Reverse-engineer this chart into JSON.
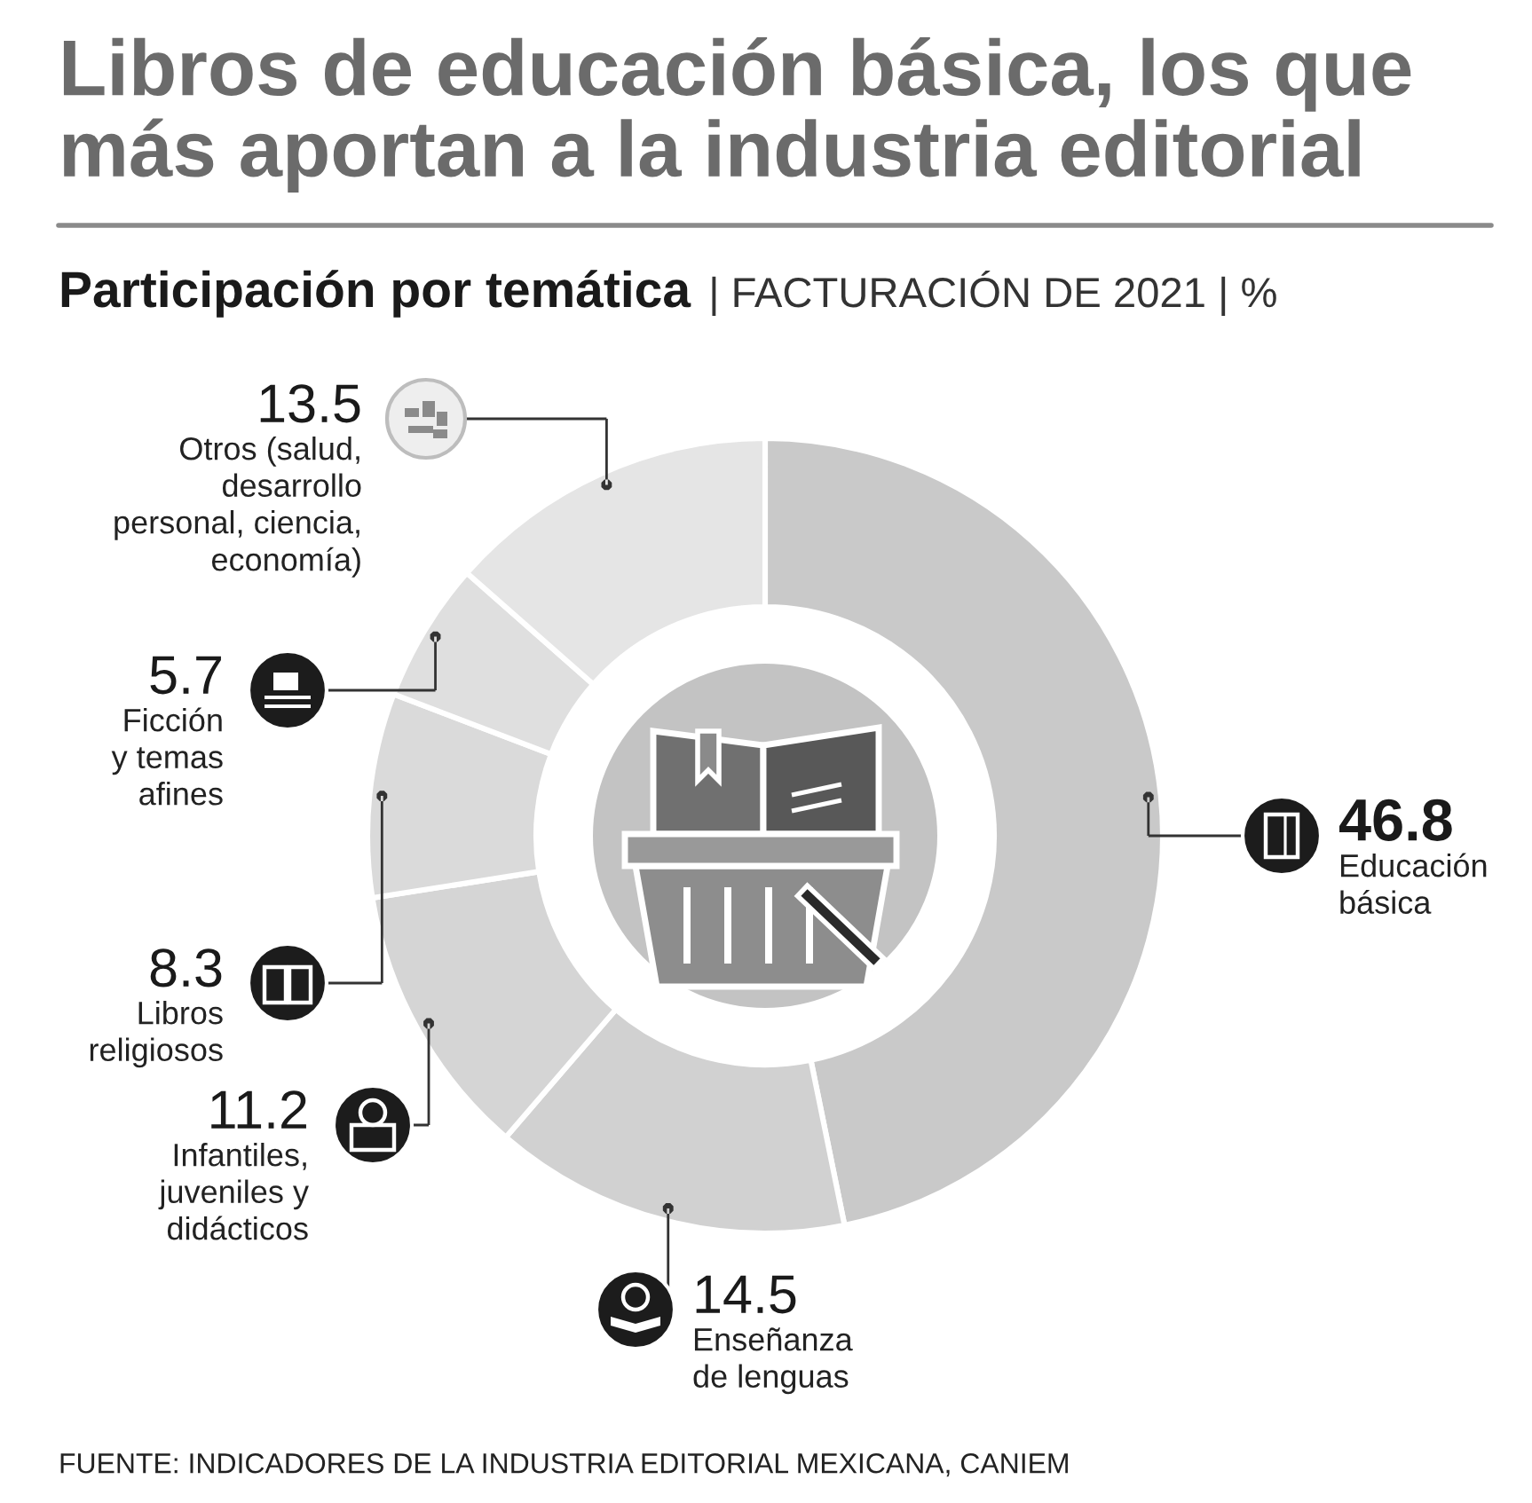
{
  "chart_data": {
    "type": "donut",
    "title": "Libros de educación básica, los que\nmás aportan a la industria editorial",
    "subtitle": "Participación por temática | FACTURACIÓN DE 2021 | %",
    "categories": [
      "Educación\nbásica",
      "Enseñanza\nde lenguas",
      "Infantiles,\njuveniles y\ndidácticos",
      "Libros\nreligiosos",
      "Ficción\ny temas\nafines",
      "Otros (salud,\ndesarrollo\npersonal, ciencia,\neconomía)"
    ],
    "values": [
      46.8,
      14.5,
      11.2,
      8.3,
      5.7,
      13.5
    ],
    "colors": [
      "#c9c9c9",
      "#d1d1d1",
      "#d5d5d5",
      "#dadada",
      "#dfdfdf",
      "#e5e5e5"
    ],
    "data_labels": true,
    "annotations": [
      "FUENTE: INDICADORES DE LA INDUSTRIA EDITORIAL MEXICANA, CANIEM"
    ]
  }
}
